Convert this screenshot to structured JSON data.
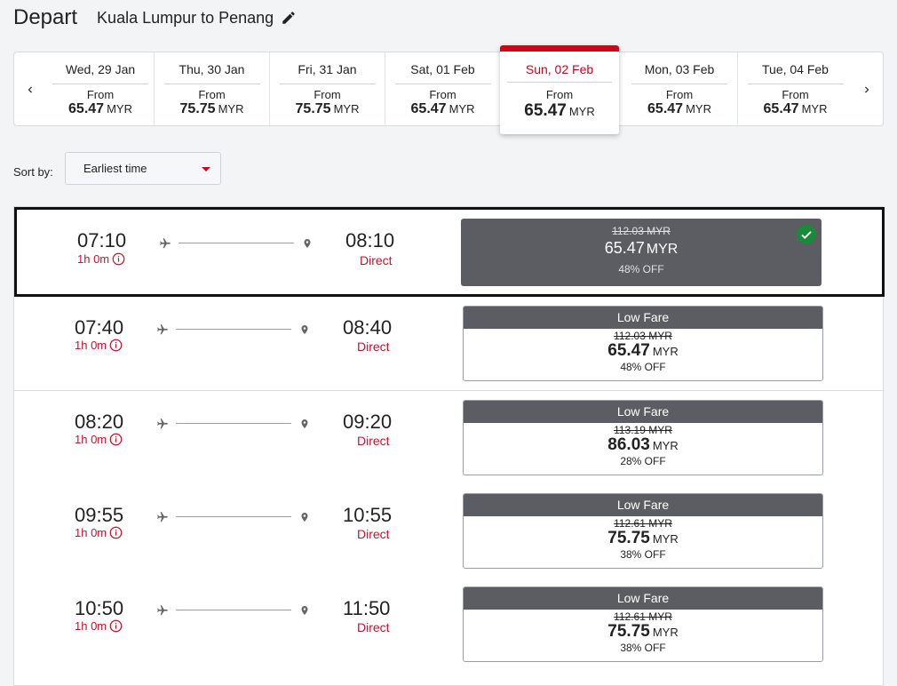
{
  "header": {
    "title": "Depart",
    "route": "Kuala Lumpur to Penang"
  },
  "date_selector": {
    "dates": [
      {
        "label": "Wed, 29 Jan",
        "from": "From",
        "price": "65.47",
        "currency": "MYR"
      },
      {
        "label": "Thu, 30 Jan",
        "from": "From",
        "price": "75.75",
        "currency": "MYR"
      },
      {
        "label": "Fri, 31 Jan",
        "from": "From",
        "price": "75.75",
        "currency": "MYR"
      },
      {
        "label": "Sat, 01 Feb",
        "from": "From",
        "price": "65.47",
        "currency": "MYR"
      },
      {
        "label": "Sun, 02 Feb",
        "from": "From",
        "price": "65.47",
        "currency": "MYR"
      },
      {
        "label": "Mon, 03 Feb",
        "from": "From",
        "price": "65.47",
        "currency": "MYR"
      },
      {
        "label": "Tue, 04 Feb",
        "from": "From",
        "price": "65.47",
        "currency": "MYR"
      }
    ]
  },
  "sort": {
    "label": "Sort by:",
    "value": "Earliest time"
  },
  "colors": {
    "accent_red": "#d0021b",
    "fare_header": "#5b5d62",
    "check_green": "#1a8a3a"
  },
  "flights": [
    {
      "depart": "07:10",
      "duration": "1h 0m",
      "arrive": "08:10",
      "stops": "Direct",
      "fare_label": "",
      "old_price": "112.03 MYR",
      "price": "65.47",
      "currency": "MYR",
      "discount": "48% OFF"
    },
    {
      "depart": "07:40",
      "duration": "1h 0m",
      "arrive": "08:40",
      "stops": "Direct",
      "fare_label": "Low Fare",
      "old_price": "112.03 MYR",
      "price": "65.47",
      "currency": "MYR",
      "discount": "48% OFF"
    },
    {
      "depart": "08:20",
      "duration": "1h 0m",
      "arrive": "09:20",
      "stops": "Direct",
      "fare_label": "Low Fare",
      "old_price": "113.19 MYR",
      "price": "86.03",
      "currency": "MYR",
      "discount": "28% OFF"
    },
    {
      "depart": "09:55",
      "duration": "1h 0m",
      "arrive": "10:55",
      "stops": "Direct",
      "fare_label": "Low Fare",
      "old_price": "112.61 MYR",
      "price": "75.75",
      "currency": "MYR",
      "discount": "38% OFF"
    },
    {
      "depart": "10:50",
      "duration": "1h 0m",
      "arrive": "11:50",
      "stops": "Direct",
      "fare_label": "Low Fare",
      "old_price": "112.61 MYR",
      "price": "75.75",
      "currency": "MYR",
      "discount": "38% OFF"
    }
  ]
}
